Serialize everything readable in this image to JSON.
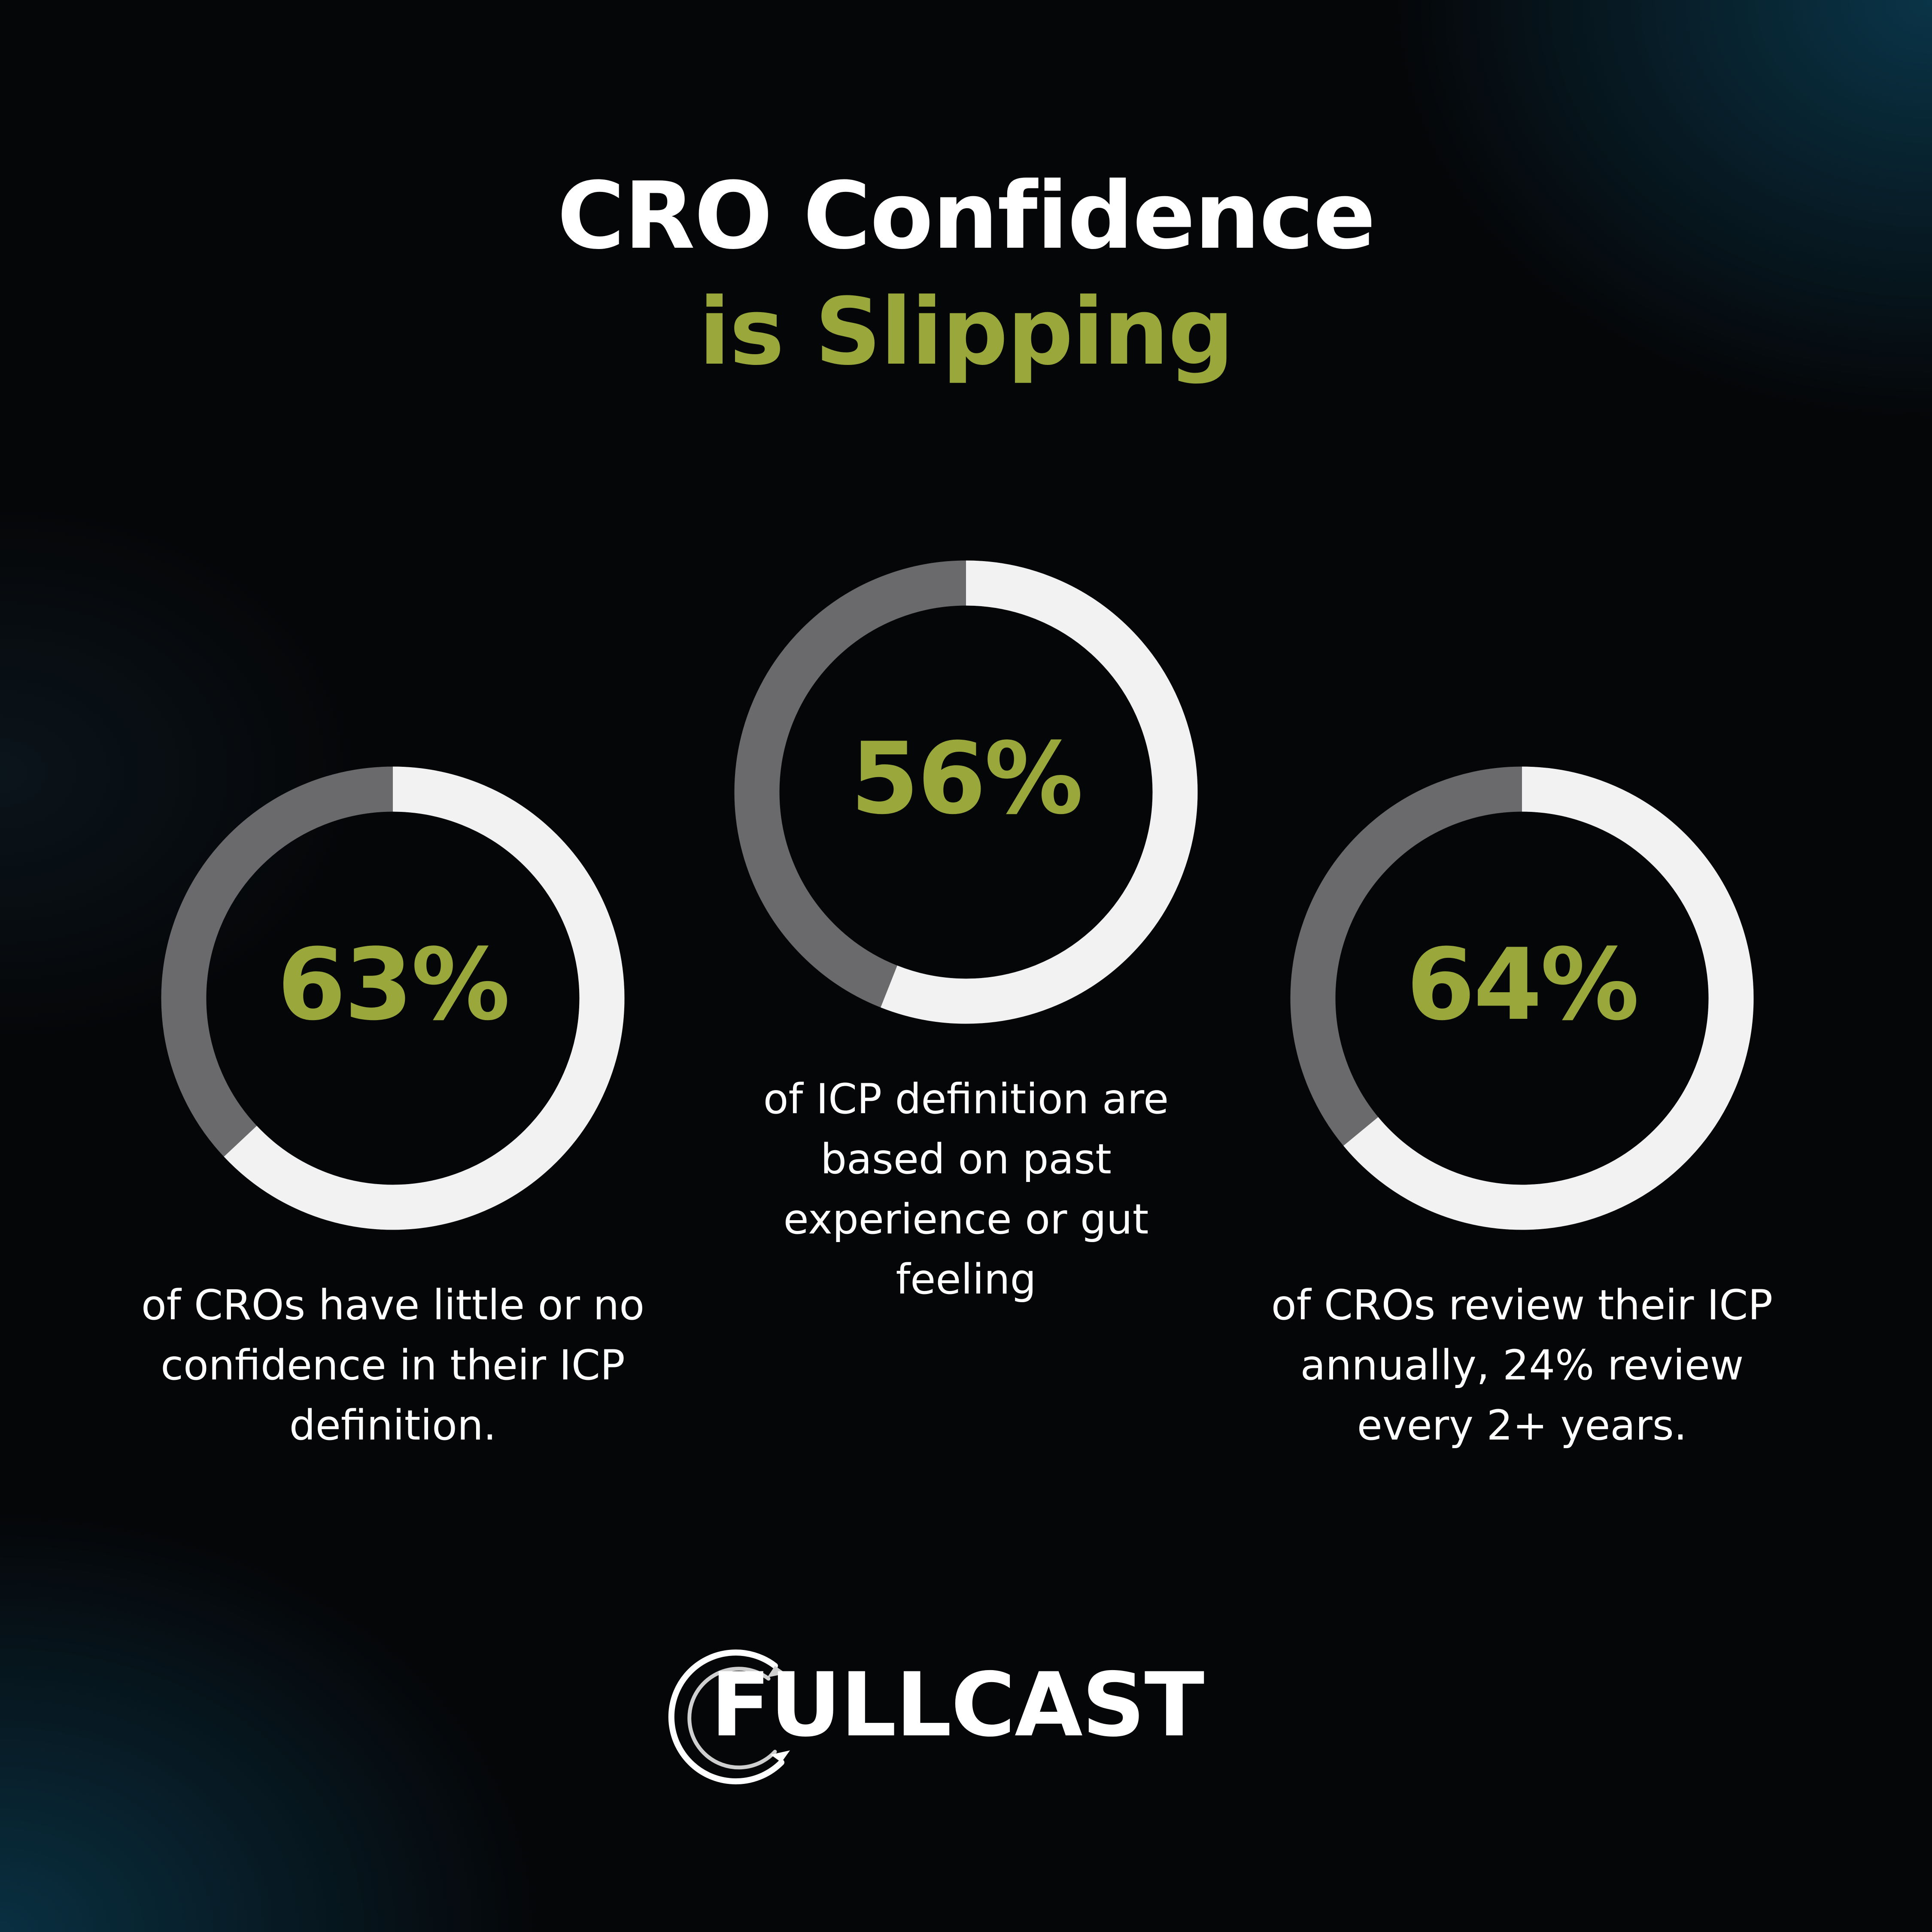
{
  "title": {
    "line1": "CRO Confidence",
    "line2": "is Slipping"
  },
  "colors": {
    "accent": "#9aa83b",
    "ring_track": "#6a6a6c",
    "ring_fill": "#f2f2f2",
    "background": "#050608"
  },
  "stats": [
    {
      "value": "63%",
      "percent": 63,
      "caption": "of CROs have little or no confidence in their ICP definition."
    },
    {
      "value": "56%",
      "percent": 56,
      "caption": "of ICP definition are based on past experience or gut feeling"
    },
    {
      "value": "64%",
      "percent": 64,
      "caption": "of CROs review their ICP annually, 24% review every 2+ years."
    }
  ],
  "logo": {
    "text": "FULLCAST",
    "icon": "circular-arrows-icon"
  }
}
